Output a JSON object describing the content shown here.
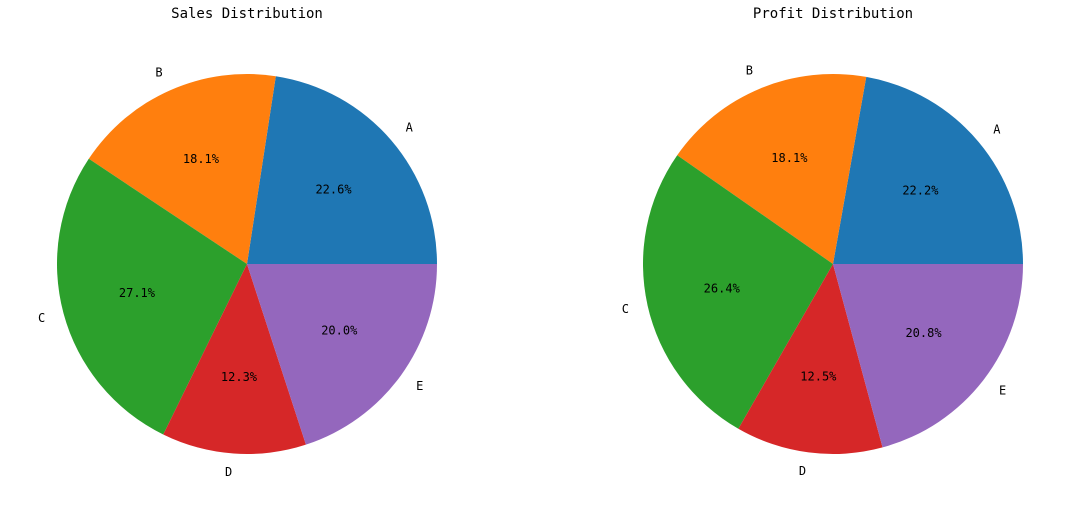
{
  "chart_data": [
    {
      "type": "pie",
      "title": "Sales Distribution",
      "categories": [
        "A",
        "B",
        "C",
        "D",
        "E"
      ],
      "values": [
        22.6,
        18.1,
        27.1,
        12.3,
        20.0
      ],
      "value_labels": [
        "22.6%",
        "18.1%",
        "27.1%",
        "12.3%",
        "20.0%"
      ],
      "colors": [
        "#1f77b4",
        "#ff7f0e",
        "#2ca02c",
        "#d62728",
        "#9467bd"
      ]
    },
    {
      "type": "pie",
      "title": "Profit Distribution",
      "categories": [
        "A",
        "B",
        "C",
        "D",
        "E"
      ],
      "values": [
        22.2,
        18.1,
        26.4,
        12.5,
        20.8
      ],
      "value_labels": [
        "22.2%",
        "18.1%",
        "26.4%",
        "12.5%",
        "20.8%"
      ],
      "colors": [
        "#1f77b4",
        "#ff7f0e",
        "#2ca02c",
        "#d62728",
        "#9467bd"
      ]
    }
  ]
}
